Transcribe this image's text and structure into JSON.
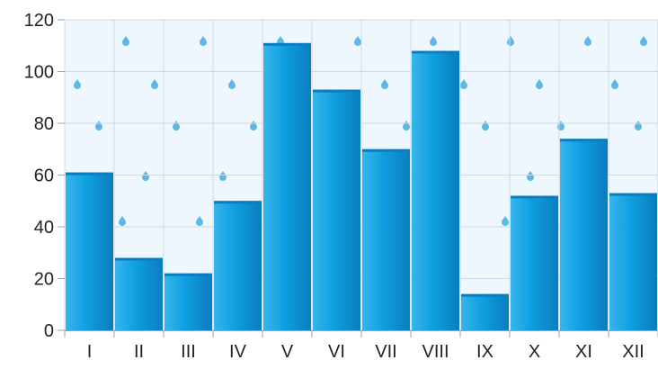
{
  "chart_data": {
    "type": "bar",
    "title": "",
    "xlabel": "",
    "ylabel": "",
    "categories": [
      "I",
      "II",
      "III",
      "IV",
      "V",
      "VI",
      "VII",
      "VIII",
      "IX",
      "X",
      "XI",
      "XII"
    ],
    "values": [
      61,
      28,
      22,
      50,
      111,
      93,
      70,
      108,
      14,
      52,
      74,
      53
    ],
    "ylim": [
      0,
      120
    ],
    "yticks": [
      0,
      20,
      40,
      60,
      80,
      100,
      120
    ],
    "grid": true,
    "legend": "none",
    "colors": {
      "bar_light": "#36b6ec",
      "bar_mid": "#0f9ee0",
      "bar_dark": "#0a7dbe",
      "plot_background": "#eef7fd",
      "gridline": "#cfd9e0",
      "axis": "#9aa3a8",
      "raindrop": "#3aa7e0"
    },
    "background_pattern": "raindrop-icon"
  }
}
